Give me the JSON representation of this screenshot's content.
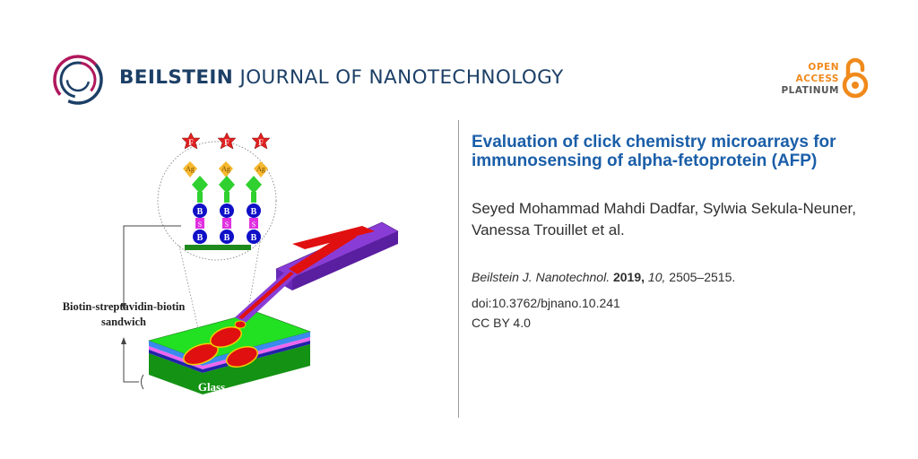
{
  "header": {
    "journal_bold": "BEILSTEIN",
    "journal_light": "JOURNAL OF NANOTECHNOLOGY",
    "open_access": [
      "OPEN",
      "ACCESS",
      "PLATINUM"
    ]
  },
  "figure": {
    "label_sandwich_line1": "Biotin-streptavidin-biotin",
    "label_sandwich_line2": "sandwich",
    "label_glass": "Glass",
    "letter_F": "F",
    "letter_Ag": "Ag",
    "letter_B": "B",
    "letter_S": "S"
  },
  "article": {
    "title": "Evaluation of click chemistry microarrays for immunosensing of alpha-fetoprotein (AFP)",
    "authors": "Seyed Mohammad Mahdi Dadfar, Sylwia Sekula-Neuner, Vanessa Trouillet et al.",
    "citation_journal": "Beilstein J. Nanotechnol.",
    "citation_year": "2019,",
    "citation_volume": "10,",
    "citation_pages": "2505–2515.",
    "doi": "doi:10.3762/bjnano.10.241",
    "license": "CC BY 4.0"
  },
  "colors": {
    "brand_navy": "#1c3f66",
    "brand_magenta": "#b0185c",
    "title_blue": "#1a5ea8",
    "oa_orange": "#f08a1c"
  }
}
